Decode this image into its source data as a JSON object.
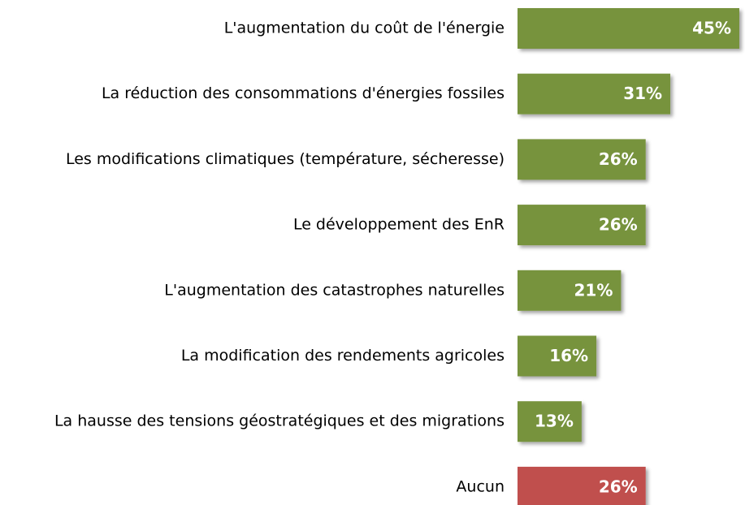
{
  "chart_data": {
    "type": "hbar",
    "categories": [
      "L'augmentation du coût de l'énergie",
      "La réduction des consommations d'énergies fossiles",
      "Les modifications climatiques (température, sécheresse)",
      "Le développement des EnR",
      "L'augmentation des catastrophes naturelles",
      "La modification des rendements agricoles",
      "La hausse des tensions géostratégiques et des migrations",
      "Aucun"
    ],
    "values": [
      45,
      31,
      26,
      26,
      21,
      16,
      13,
      26
    ],
    "value_labels": [
      "45%",
      "31%",
      "26%",
      "26%",
      "21%",
      "16%",
      "13%",
      "26%"
    ],
    "colors": [
      "#77933c",
      "#77933c",
      "#77933c",
      "#77933c",
      "#77933c",
      "#77933c",
      "#77933c",
      "#c0504d"
    ]
  }
}
